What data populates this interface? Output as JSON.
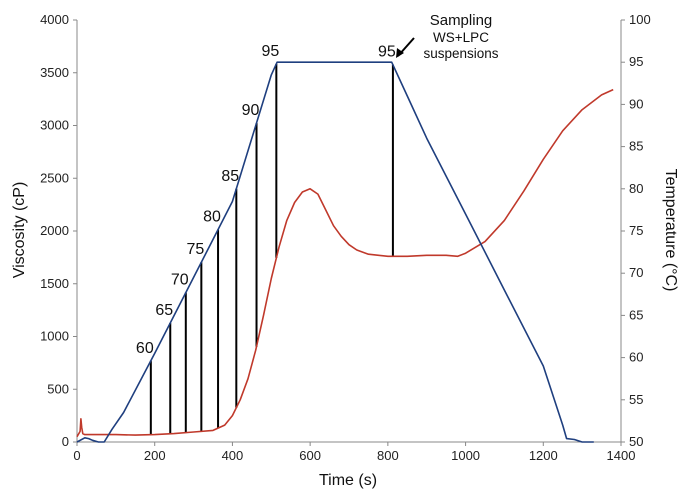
{
  "chart_data": {
    "type": "line",
    "title": "",
    "xlabel": "Time (s)",
    "ylabel_left": "Viscosity (cP)",
    "ylabel_right": "Temperature (°C)",
    "xlim": [
      0,
      1400
    ],
    "ylim_left": [
      0,
      4000
    ],
    "ylim_right": [
      50,
      100
    ],
    "x_ticks": [
      0,
      200,
      400,
      600,
      800,
      1000,
      1200,
      1400
    ],
    "y_left_ticks": [
      0,
      500,
      1000,
      1500,
      2000,
      2500,
      3000,
      3500,
      4000
    ],
    "y_right_ticks": [
      50,
      55,
      60,
      65,
      70,
      75,
      80,
      85,
      90,
      95,
      100
    ],
    "grid": false,
    "colors": {
      "viscosity": "#c0392b",
      "temperature": "#1f3f7f",
      "sampling_lines": "#000000"
    },
    "series": [
      {
        "key": "viscosity",
        "axis": "left",
        "x": [
          0,
          8,
          10,
          12,
          15,
          20,
          50,
          100,
          150,
          200,
          250,
          300,
          350,
          380,
          400,
          420,
          440,
          460,
          480,
          500,
          520,
          540,
          560,
          580,
          600,
          620,
          640,
          660,
          680,
          700,
          720,
          750,
          800,
          850,
          900,
          950,
          980,
          1000,
          1050,
          1100,
          1150,
          1200,
          1250,
          1300,
          1350,
          1380
        ],
        "values": [
          50,
          100,
          220,
          140,
          80,
          70,
          70,
          70,
          65,
          70,
          80,
          95,
          110,
          160,
          250,
          400,
          600,
          870,
          1200,
          1550,
          1850,
          2100,
          2270,
          2370,
          2400,
          2350,
          2200,
          2050,
          1950,
          1870,
          1820,
          1780,
          1760,
          1760,
          1770,
          1770,
          1760,
          1790,
          1900,
          2100,
          2380,
          2680,
          2950,
          3150,
          3290,
          3340
        ]
      },
      {
        "key": "temperature",
        "axis": "right",
        "x": [
          0,
          20,
          30,
          40,
          55,
          70,
          90,
          120,
          200,
          300,
          400,
          500,
          515,
          600,
          700,
          810,
          850,
          900,
          1000,
          1100,
          1200,
          1250,
          1260,
          1280,
          1300,
          1330
        ],
        "values": [
          50,
          50.5,
          50.4,
          50.2,
          50,
          50,
          51.5,
          53.5,
          60.5,
          69.5,
          78.5,
          93.5,
          95,
          95,
          95,
          95,
          91,
          86,
          77,
          68,
          59,
          52,
          50.4,
          50.3,
          50,
          50
        ]
      }
    ],
    "sampling_lines": [
      {
        "x": 190,
        "label": "60"
      },
      {
        "x": 240,
        "label": "65"
      },
      {
        "x": 280,
        "label": "70"
      },
      {
        "x": 320,
        "label": "75"
      },
      {
        "x": 363,
        "label": "80"
      },
      {
        "x": 410,
        "label": "85"
      },
      {
        "x": 462,
        "label": "90"
      },
      {
        "x": 513,
        "label": "95"
      },
      {
        "x": 813,
        "label": "95"
      }
    ],
    "annotation": {
      "line1": "Sampling",
      "line2": "WS+LPC",
      "line3": "suspensions"
    }
  }
}
